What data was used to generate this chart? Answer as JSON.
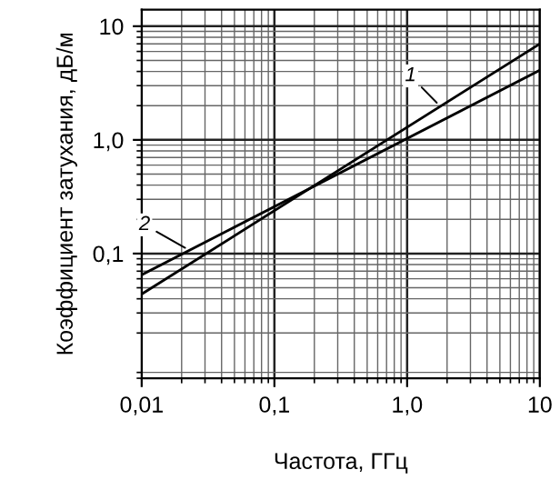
{
  "chart_data": {
    "type": "line",
    "xlabel": "Частота, ГГц",
    "ylabel": "Коэффициент затухания, дБ/м",
    "log": "xy",
    "grid": true,
    "legend": false,
    "marker": "none",
    "line_style": "solid",
    "x": [
      0.01,
      10
    ],
    "series": [
      {
        "name": "1",
        "color": "#000000",
        "values": [
          0.044,
          7
        ]
      },
      {
        "name": "2",
        "color": "#000000",
        "values": [
          0.065,
          4.1
        ]
      }
    ],
    "xlim": [
      0.01,
      10
    ],
    "ylim": [
      0.008,
      14
    ],
    "xticks": [
      {
        "value": 0.01,
        "label": "0,01"
      },
      {
        "value": 0.1,
        "label": "0,1"
      },
      {
        "value": 1,
        "label": "1,0"
      },
      10
    ],
    "yticks": [
      {
        "value": 0.1,
        "label": "0,1"
      },
      {
        "value": 1,
        "label": "1,0"
      },
      10
    ]
  }
}
